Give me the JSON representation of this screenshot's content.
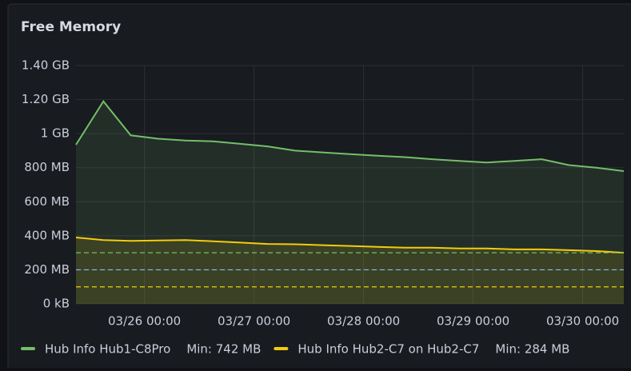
{
  "chart_data": {
    "type": "line",
    "title": "Free Memory",
    "x": [
      "03/25 09:00",
      "03/25 15:00",
      "03/25 21:00",
      "03/26 03:00",
      "03/26 09:00",
      "03/26 15:00",
      "03/26 21:00",
      "03/27 03:00",
      "03/27 09:00",
      "03/27 15:00",
      "03/27 21:00",
      "03/28 03:00",
      "03/28 09:00",
      "03/28 15:00",
      "03/28 21:00",
      "03/29 03:00",
      "03/29 09:00",
      "03/29 15:00",
      "03/29 21:00",
      "03/30 03:00",
      "03/30 09:00"
    ],
    "xlim": [
      "03/25 09:00",
      "03/30 09:00"
    ],
    "xticks": [
      "03/26 00:00",
      "03/27 00:00",
      "03/28 00:00",
      "03/29 00:00",
      "03/30 00:00"
    ],
    "ylim": [
      0,
      1400
    ],
    "yticks": [
      {
        "value": 0,
        "label": "0 kB"
      },
      {
        "value": 200,
        "label": "200 MB"
      },
      {
        "value": 400,
        "label": "400 MB"
      },
      {
        "value": 600,
        "label": "600 MB"
      },
      {
        "value": 800,
        "label": "800 MB"
      },
      {
        "value": 1000,
        "label": "1 GB"
      },
      {
        "value": 1200,
        "label": "1.20 GB"
      },
      {
        "value": 1400,
        "label": "1.40 GB"
      }
    ],
    "grid": true,
    "series": [
      {
        "name": "Hub Info Hub1-C8Pro",
        "color": "#73bf69",
        "min": 742,
        "min_label": "Min: 742 MB",
        "values": [
          935,
          1190,
          990,
          970,
          960,
          955,
          940,
          925,
          900,
          890,
          880,
          870,
          862,
          850,
          840,
          830,
          840,
          850,
          815,
          800,
          780
        ]
      },
      {
        "name": "Hub Info Hub2-C7 on Hub2-C7",
        "color": "#f2cc0c",
        "min": 284,
        "min_label": "Min: 284 MB",
        "values": [
          390,
          375,
          370,
          372,
          375,
          368,
          360,
          352,
          350,
          345,
          340,
          335,
          330,
          330,
          325,
          325,
          320,
          320,
          315,
          310,
          300
        ]
      }
    ],
    "thresholds": [
      {
        "value": 300,
        "color": "#73bf69"
      },
      {
        "value": 200,
        "color": "#8ab8ff"
      },
      {
        "value": 100,
        "color": "#f2cc0c"
      }
    ]
  }
}
